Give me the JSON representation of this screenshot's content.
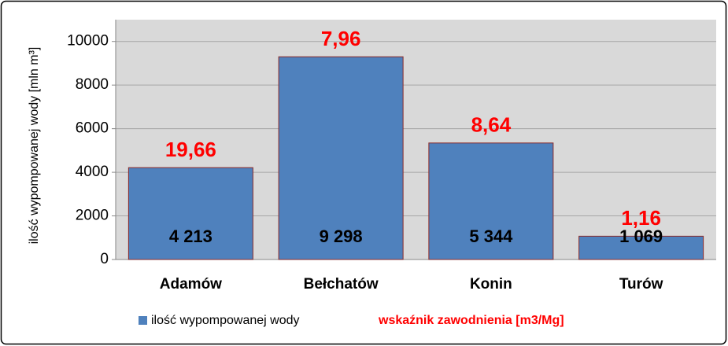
{
  "chart_data": {
    "type": "bar",
    "y_label": "ilość wypompowanej wody [mln m³]",
    "categories": [
      "Adamów",
      "Bełchatów",
      "Konin",
      "Turów"
    ],
    "series": [
      {
        "name": "ilość wypompowanej wody",
        "color": "#4f81bd",
        "values": [
          4213,
          9298,
          5344,
          1069
        ],
        "value_labels": [
          "4 213",
          "9 298",
          "5 344",
          "1 069"
        ]
      },
      {
        "name": "wskaźnik zawodnienia [m3/Mg]",
        "color": "#ff0000",
        "values": [
          19.66,
          7.96,
          8.64,
          1.16
        ],
        "value_labels": [
          "19,66",
          "7,96",
          "8,64",
          "1,16"
        ]
      }
    ],
    "ylim": [
      0,
      11000
    ],
    "yticks": [
      0,
      2000,
      4000,
      6000,
      8000,
      10000
    ],
    "grid": true
  }
}
